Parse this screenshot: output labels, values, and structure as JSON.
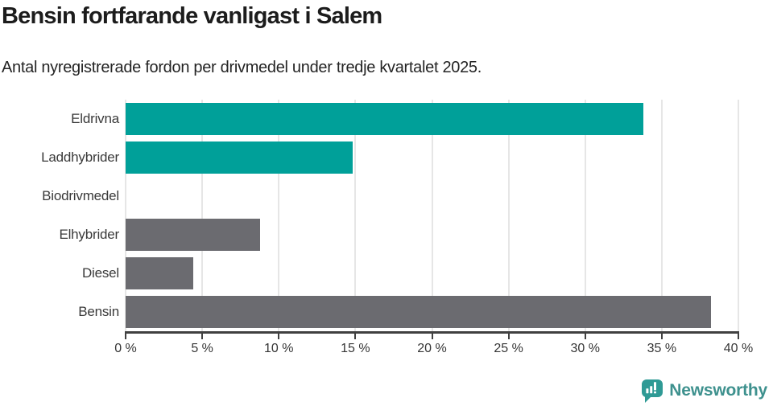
{
  "chart_data": {
    "type": "bar",
    "orientation": "horizontal",
    "title": "Bensin fortfarande vanligast i Salem",
    "subtitle": "Antal nyregistrerade fordon per drivmedel under tredje kvartalet 2025.",
    "categories": [
      "Eldrivna",
      "Laddhybrider",
      "Biodrivmedel",
      "Elhybrider",
      "Diesel",
      "Bensin"
    ],
    "values": [
      33.8,
      14.8,
      0,
      8.8,
      4.4,
      38.2
    ],
    "unit": "%",
    "xlim": [
      0,
      40
    ],
    "x_tick_labels": [
      "0 %",
      "5 %",
      "10 %",
      "15 %",
      "20 %",
      "25 %",
      "30 %",
      "35 %",
      "40 %"
    ],
    "bar_colors": [
      "#00a099",
      "#00a099",
      "#00a099",
      "#6b6b70",
      "#6b6b70",
      "#6b6b70"
    ],
    "grid": "vertical-gridlines-on",
    "legend": "none",
    "colors": {
      "accent_teal": "#00a099",
      "neutral_gray": "#6b6b70",
      "gridline": "#e6e6e6",
      "axis": "#404040"
    }
  },
  "footer": {
    "brand": "Newsworthy",
    "brand_color": "#3e918e",
    "icon": "newsworthy-speech-bubble-chart-icon",
    "icon_color": "#2f9a95"
  }
}
